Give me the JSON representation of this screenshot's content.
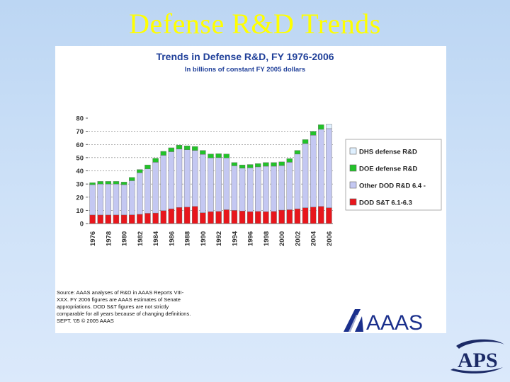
{
  "slide": {
    "title": "Defense R&D Trends"
  },
  "chart_data": {
    "type": "bar",
    "stacked": true,
    "title": "Trends in Defense R&D, FY 1976-2006",
    "subtitle": "In billions of constant FY 2005 dollars",
    "xlabel": "",
    "ylabel": "",
    "ylim": [
      0,
      80
    ],
    "yticks": [
      0,
      10,
      20,
      30,
      40,
      50,
      60,
      70,
      80
    ],
    "categories": [
      1976,
      1977,
      1978,
      1979,
      1980,
      1981,
      1982,
      1983,
      1984,
      1985,
      1986,
      1987,
      1988,
      1989,
      1990,
      1991,
      1992,
      1993,
      1994,
      1995,
      1996,
      1997,
      1998,
      1999,
      2000,
      2001,
      2002,
      2003,
      2004,
      2005,
      2006
    ],
    "tick_labels": [
      "1976",
      "1978",
      "1980",
      "1982",
      "1984",
      "1986",
      "1988",
      "1990",
      "1992",
      "1994",
      "1996",
      "1998",
      "2000",
      "2002",
      "2004",
      "2006"
    ],
    "legend_position": "right",
    "series": [
      {
        "name": "DOD S&T 6.1-6.3",
        "color": "#e8161c",
        "values": [
          6.5,
          6.5,
          6.5,
          6.5,
          6.5,
          6.6,
          7.0,
          7.8,
          8.0,
          9.8,
          11.2,
          12.2,
          12.5,
          13.0,
          8.2,
          9.0,
          9.2,
          10.5,
          10.0,
          9.5,
          9.0,
          9.2,
          9.0,
          9.2,
          10.2,
          10.5,
          11.2,
          12.0,
          12.5,
          13.0,
          12.0
        ]
      },
      {
        "name": "Other DOD R&D 6.4 -",
        "color": "#c4c8f2",
        "values": [
          23.0,
          23.5,
          23.5,
          23.5,
          23.0,
          25.9,
          31.5,
          33.7,
          38.5,
          42.0,
          43.3,
          44.3,
          43.5,
          42.5,
          44.3,
          40.8,
          40.8,
          39.3,
          33.8,
          32.5,
          33.3,
          33.8,
          34.5,
          34.3,
          33.8,
          36.0,
          41.5,
          48.7,
          54.5,
          58.5,
          60.0
        ]
      },
      {
        "name": "DOE defense R&D",
        "color": "#22c229",
        "values": [
          1.5,
          2.0,
          2.0,
          2.0,
          2.0,
          2.5,
          2.5,
          3.0,
          3.0,
          3.0,
          3.0,
          3.0,
          3.0,
          3.0,
          3.0,
          3.0,
          3.0,
          3.0,
          2.5,
          2.5,
          2.5,
          2.5,
          2.8,
          2.8,
          2.8,
          2.8,
          2.8,
          3.0,
          3.0,
          3.5,
          0.0
        ]
      },
      {
        "name": "DHS defense R&D",
        "color": "#dff0ff",
        "values": [
          0,
          0,
          0,
          0,
          0,
          0,
          0,
          0,
          0,
          0,
          0,
          0,
          0,
          0,
          0,
          0,
          0,
          0,
          0,
          0,
          0,
          0,
          0,
          0,
          0,
          0,
          0,
          0,
          0,
          0,
          3.5
        ]
      }
    ],
    "legend_order": [
      "DHS defense R&D",
      "DOE defense R&D",
      "Other DOD R&D 6.4 -",
      "DOD S&T 6.1-6.3"
    ],
    "source_note": [
      "Source: AAAS analyses of R&D in AAAS Reports VIII-",
      "XXX. FY 2006 figures are AAAS estimates of Senate",
      "appropriations. DOD S&T figures are not strictly",
      "comparable for all years because of changing definitions.",
      "SEPT. '05 © 2005 AAAS"
    ]
  },
  "logos": {
    "aaas": "AAAS",
    "aps": "APS"
  },
  "colors": {
    "title": "#ffff00",
    "aaas_blue": "#1a2f8c",
    "aaas_red": "#d8262e"
  }
}
